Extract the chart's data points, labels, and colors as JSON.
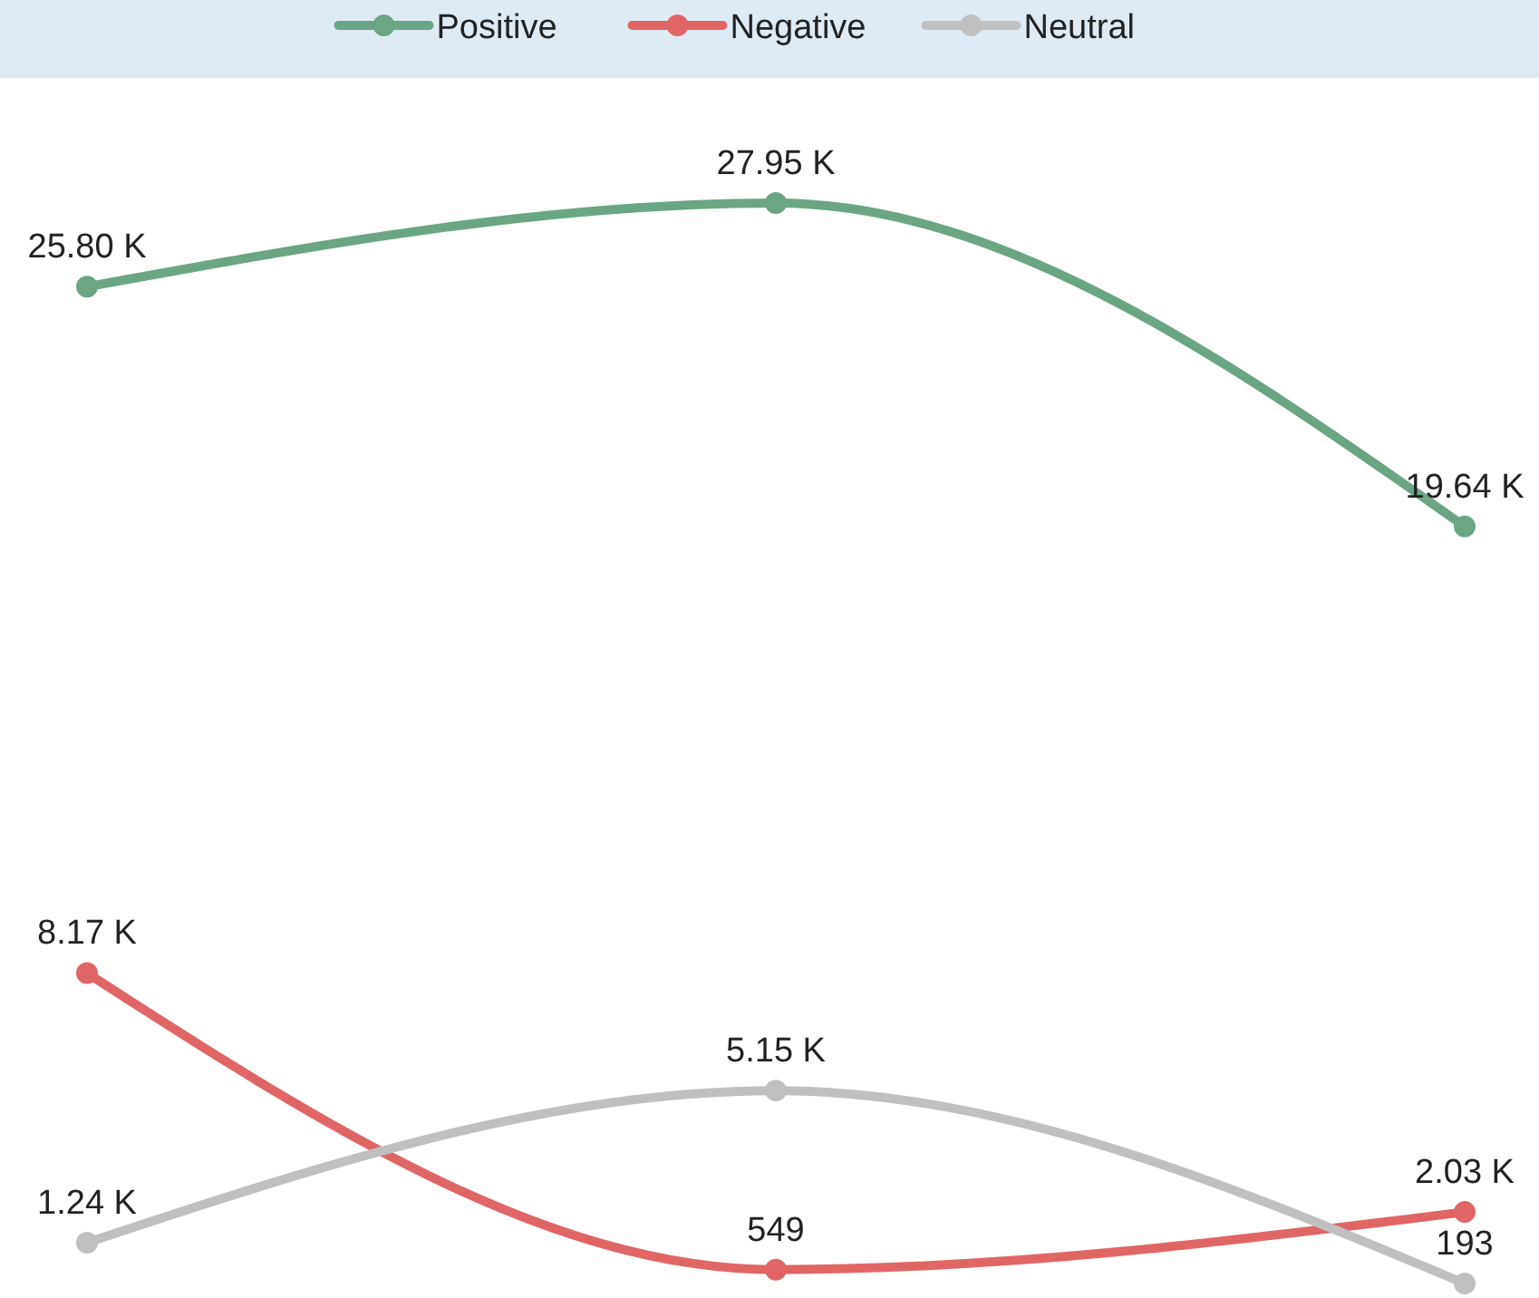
{
  "chart_data": {
    "type": "line",
    "categories": [
      null,
      null,
      null
    ],
    "legend": "top",
    "marker": "circle",
    "line_style": "solid",
    "series": [
      {
        "name": "Positive",
        "color": "#6aa683",
        "values": [
          25800,
          27950,
          19640
        ],
        "value_labels": [
          "25.80 K",
          "27.95 K",
          "19.64 K"
        ]
      },
      {
        "name": "Negative",
        "color": "#e06666",
        "values": [
          8170,
          549,
          2030
        ],
        "value_labels": [
          "8.17 K",
          "549",
          "2.03 K"
        ]
      },
      {
        "name": "Neutral",
        "color": "#c0c0c0",
        "values": [
          1240,
          5150,
          193
        ],
        "value_labels": [
          "1.24 K",
          "5.15 K",
          "193"
        ]
      }
    ]
  }
}
